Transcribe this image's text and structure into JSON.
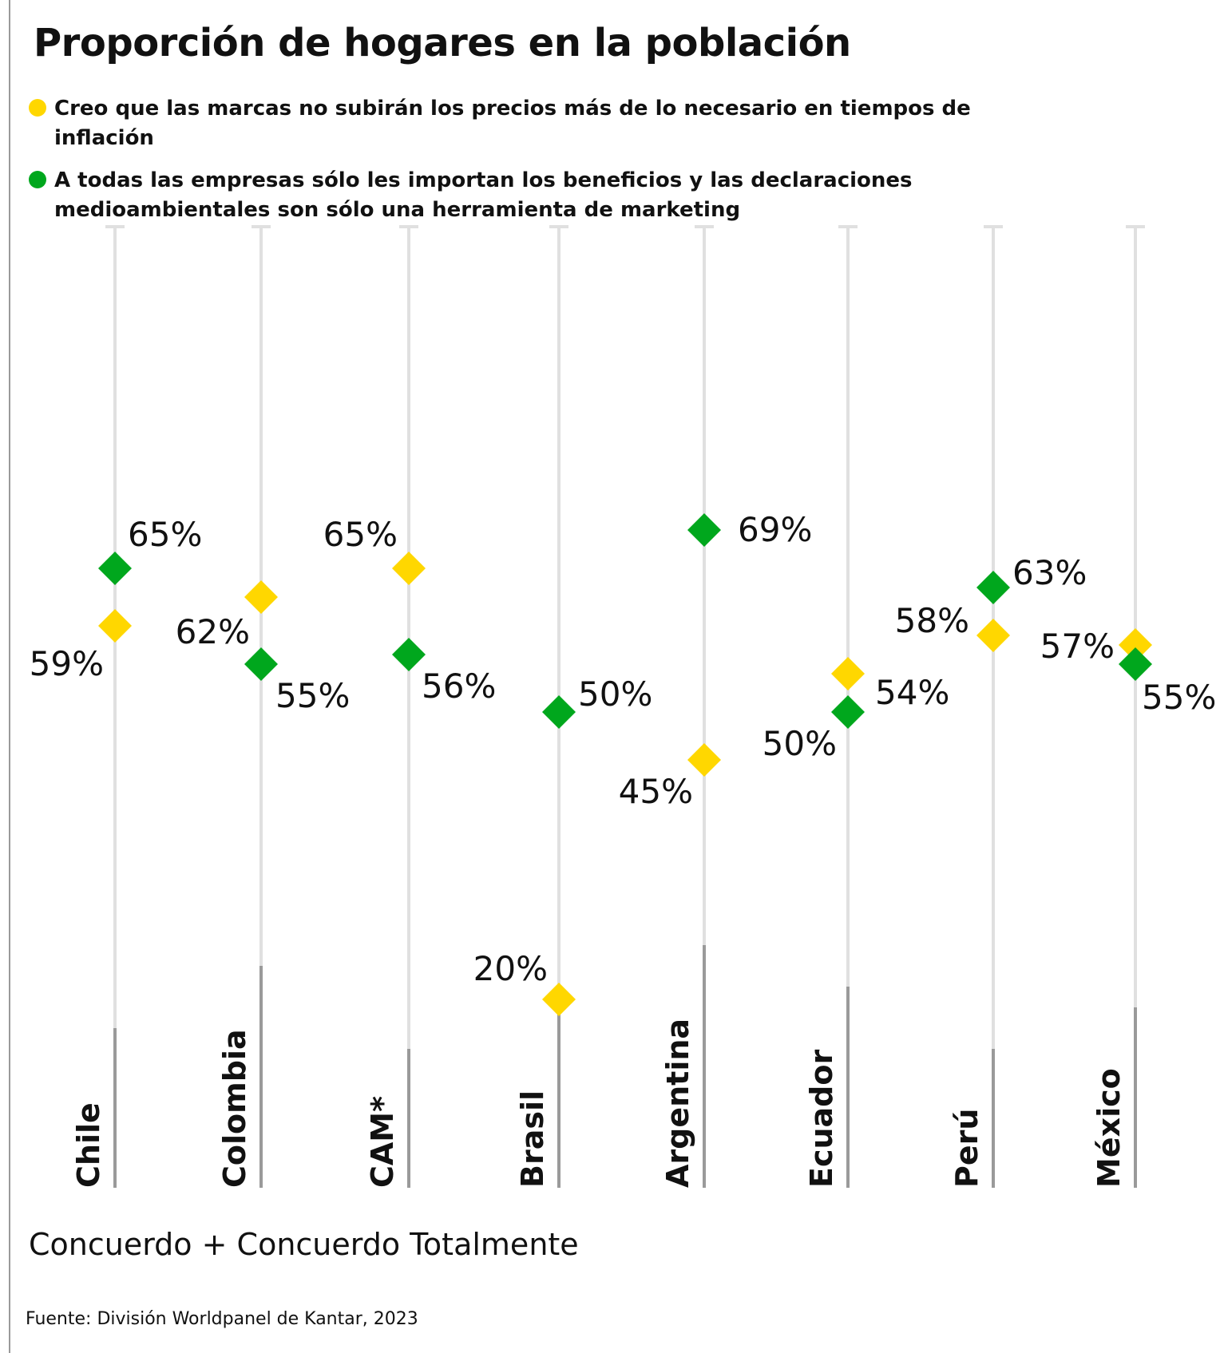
{
  "title": "Proporción de hogares en la población",
  "legend": [
    {
      "label": "Creo que las marcas no subirán los precios más de lo necesario en tiempos de inflación",
      "color": "#FFD700"
    },
    {
      "label": "A todas las empresas sólo les importan los beneficios y las declaraciones medioambientales son sólo una herramienta de marketing",
      "color": "#00A71D"
    }
  ],
  "note": "Concuerdo + Concuerdo Totalmente",
  "source": "Fuente: División Worldpanel de Kantar, 2023",
  "chart_data": {
    "type": "scatter",
    "categories": [
      "Chile",
      "Colombia",
      "CAM*",
      "Brasil",
      "Argentina",
      "Ecuador",
      "Perú",
      "México"
    ],
    "series": [
      {
        "name": "Creo que las marcas no subirán los precios más de lo necesario en tiempos de inflación",
        "color": "#FFD700",
        "values": [
          59,
          62,
          65,
          20,
          45,
          54,
          58,
          57
        ],
        "labels": [
          "59%",
          "62%",
          "65%",
          "20%",
          "45%",
          "54%",
          "58%",
          "57%"
        ]
      },
      {
        "name": "A todas las empresas sólo les importan los beneficios y las declaraciones medioambientales son sólo una herramienta de marketing",
        "color": "#00A71D",
        "values": [
          65,
          55,
          56,
          50,
          69,
          50,
          63,
          55
        ],
        "labels": [
          "65%",
          "55%",
          "56%",
          "50%",
          "69%",
          "50%",
          "63%",
          "55%"
        ]
      }
    ],
    "marker": "diamond",
    "grid": false
  }
}
